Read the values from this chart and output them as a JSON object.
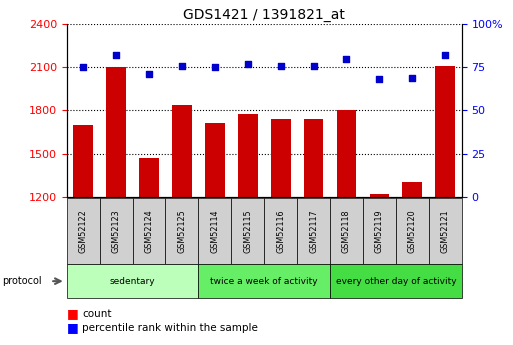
{
  "title": "GDS1421 / 1391821_at",
  "samples": [
    "GSM52122",
    "GSM52123",
    "GSM52124",
    "GSM52125",
    "GSM52114",
    "GSM52115",
    "GSM52116",
    "GSM52117",
    "GSM52118",
    "GSM52119",
    "GSM52120",
    "GSM52121"
  ],
  "counts": [
    1700,
    2105,
    1470,
    1840,
    1710,
    1775,
    1740,
    1740,
    1800,
    1215,
    1300,
    2110
  ],
  "percentiles": [
    75,
    82,
    71,
    76,
    75,
    77,
    76,
    76,
    80,
    68,
    69,
    82
  ],
  "ylim_left": [
    1200,
    2400
  ],
  "ylim_right": [
    0,
    100
  ],
  "yticks_left": [
    1200,
    1500,
    1800,
    2100,
    2400
  ],
  "yticks_right": [
    0,
    25,
    50,
    75,
    100
  ],
  "groups": [
    {
      "label": "sedentary",
      "start": 0,
      "end": 4,
      "color": "#bbffbb"
    },
    {
      "label": "twice a week of activity",
      "start": 4,
      "end": 8,
      "color": "#66ee66"
    },
    {
      "label": "every other day of activity",
      "start": 8,
      "end": 12,
      "color": "#44dd44"
    }
  ],
  "bar_color": "#cc0000",
  "dot_color": "#0000cc",
  "bar_bottom": 1200,
  "bar_width": 0.6,
  "plot_bg": "#ffffff",
  "sample_cell_color": "#d0d0d0",
  "legend_items": [
    {
      "color": "#cc0000",
      "label": "count"
    },
    {
      "color": "#0000cc",
      "label": "percentile rank within the sample"
    }
  ]
}
